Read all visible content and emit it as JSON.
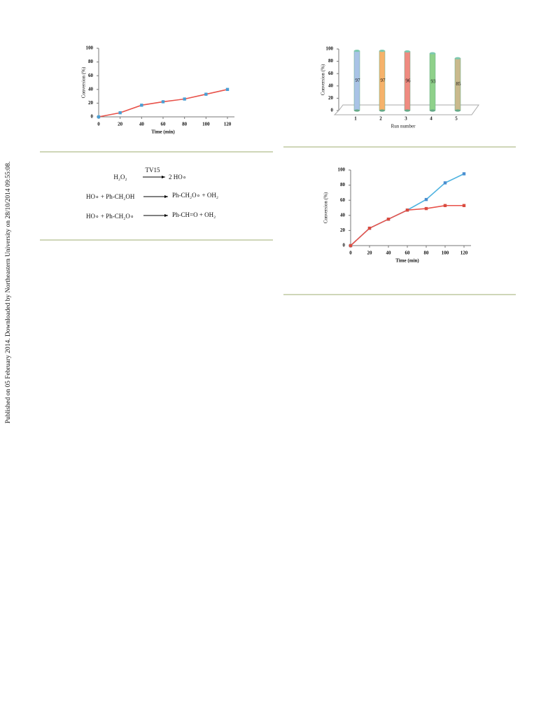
{
  "side_note": "Published on 05 February 2014. Downloaded by Northeastern University on 28/10/2014 09:55:08.",
  "chart_data": [
    {
      "type": "line",
      "xlabel": "Time (min)",
      "ylabel": "Conversion (%)",
      "x": [
        0,
        20,
        40,
        60,
        80,
        100,
        120
      ],
      "xlim": [
        0,
        120
      ],
      "xticks": [
        0,
        20,
        40,
        60,
        80,
        100,
        120
      ],
      "ylim": [
        0,
        100
      ],
      "yticks": [
        0,
        20,
        40,
        60,
        80,
        100
      ],
      "grid": false,
      "series": [
        {
          "color": "#e8524a",
          "marker_color": "#4a9fd4",
          "values": [
            0,
            6,
            17,
            22,
            26,
            33,
            40
          ]
        }
      ]
    },
    {
      "type": "bar",
      "xlabel": "Run number",
      "ylabel": "Conversion (%)",
      "categories": [
        "1",
        "2",
        "3",
        "4",
        "5"
      ],
      "values": [
        97,
        97,
        96,
        93,
        85
      ],
      "colors": [
        "#a9c3e6",
        "#f6b26b",
        "#ef8a80",
        "#8fd18a",
        "#c9b98c"
      ],
      "ylim": [
        0,
        100
      ],
      "yticks": [
        0,
        20,
        40,
        60,
        80,
        100
      ],
      "grid": false
    },
    {
      "type": "line",
      "xlabel": "Time (min)",
      "ylabel": "Conversion (%)",
      "x": [
        0,
        20,
        40,
        60,
        80,
        100,
        120
      ],
      "xlim": [
        0,
        120
      ],
      "xticks": [
        0,
        20,
        40,
        60,
        80,
        100,
        120
      ],
      "ylim": [
        0,
        100
      ],
      "yticks": [
        0,
        20,
        40,
        60,
        80,
        100
      ],
      "grid": false,
      "series": [
        {
          "color": "#4fb3e0",
          "marker_color": "#4a8fd0",
          "values": [
            0,
            23,
            35,
            47,
            61,
            83,
            95
          ]
        },
        {
          "color": "#e8524a",
          "marker_color": "#d94b3f",
          "values": [
            0,
            23,
            35,
            47,
            49,
            53,
            53
          ]
        }
      ]
    }
  ],
  "scheme": [
    {
      "left": "H₂O₂",
      "over": "TV15",
      "right": "2 HO∘"
    },
    {
      "left": "HO∘ + Ph-CH₂OH",
      "right": "Ph-CH₂O∘  +  OH₂"
    },
    {
      "left": "HO∘ + Ph-CH₂O∘",
      "right": "Ph-CH=O  +  OH₂"
    }
  ]
}
